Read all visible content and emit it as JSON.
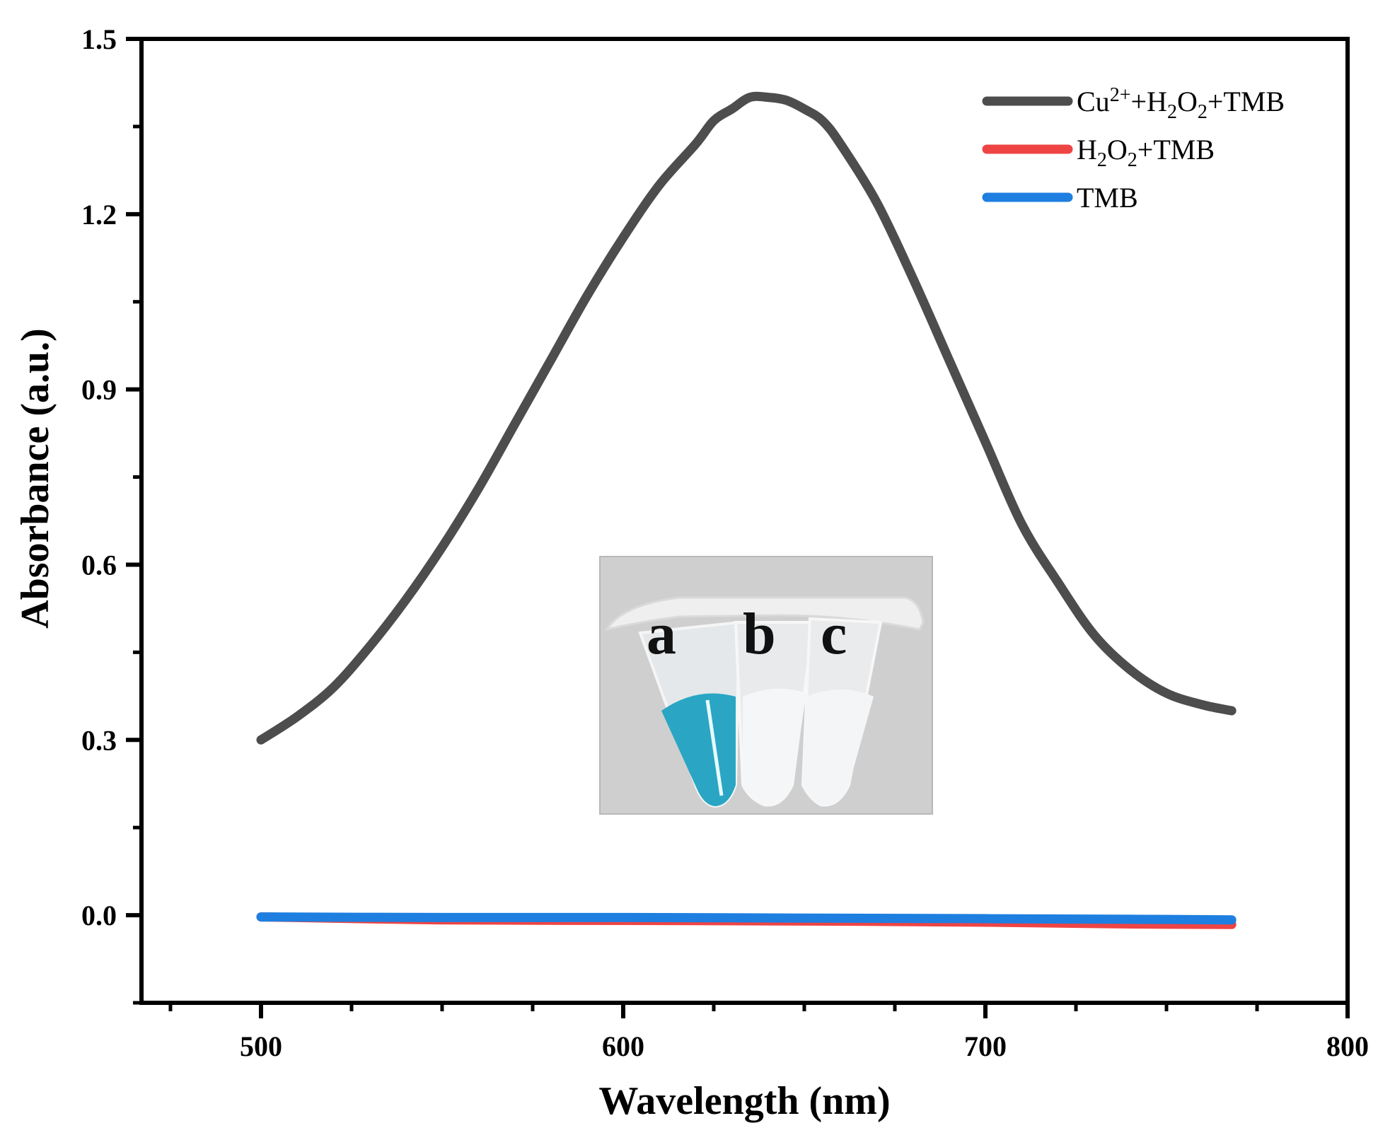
{
  "chart_data": {
    "type": "line",
    "title": "",
    "xlabel": "Wavelength (nm)",
    "ylabel": "Absorbance (a.u.)",
    "xlim": [
      467,
      800
    ],
    "ylim": [
      -0.15,
      1.5
    ],
    "xticks": [
      500,
      600,
      700,
      800
    ],
    "xtick_labels": [
      "500",
      "600",
      "700",
      "800"
    ],
    "yticks": [
      0.0,
      0.3,
      0.6,
      0.9,
      1.2,
      1.5
    ],
    "ytick_labels": [
      "0.0",
      "0.3",
      "0.6",
      "0.9",
      "1.2",
      "1.5"
    ],
    "grid": false,
    "legend_position": "top-right",
    "series": [
      {
        "name": "Cu²⁺+H₂O₂+TMB",
        "color": "#4d4d4d",
        "x": [
          500,
          510,
          520,
          530,
          540,
          550,
          560,
          570,
          580,
          590,
          600,
          610,
          620,
          625,
          630,
          635,
          640,
          645,
          650,
          655,
          660,
          670,
          680,
          690,
          700,
          710,
          720,
          730,
          740,
          750,
          760,
          768
        ],
        "y": [
          0.3,
          0.34,
          0.39,
          0.46,
          0.54,
          0.63,
          0.73,
          0.84,
          0.95,
          1.06,
          1.16,
          1.25,
          1.32,
          1.36,
          1.38,
          1.4,
          1.4,
          1.395,
          1.38,
          1.36,
          1.32,
          1.22,
          1.09,
          0.95,
          0.81,
          0.67,
          0.57,
          0.48,
          0.42,
          0.38,
          0.36,
          0.35
        ]
      },
      {
        "name": "H₂O₂+TMB",
        "color": "#ef4444",
        "x": [
          500,
          550,
          600,
          650,
          700,
          740,
          768
        ],
        "y": [
          -0.003,
          -0.008,
          -0.009,
          -0.01,
          -0.012,
          -0.015,
          -0.016
        ]
      },
      {
        "name": "TMB",
        "color": "#1e7fe0",
        "x": [
          500,
          550,
          600,
          650,
          700,
          740,
          768
        ],
        "y": [
          -0.003,
          -0.004,
          -0.004,
          -0.005,
          -0.006,
          -0.007,
          -0.008
        ]
      }
    ],
    "inset": {
      "description_labels": [
        "a",
        "b",
        "c"
      ],
      "liquid_color_a": "#2aa6c4",
      "background_color": "#cfcfcf"
    }
  }
}
